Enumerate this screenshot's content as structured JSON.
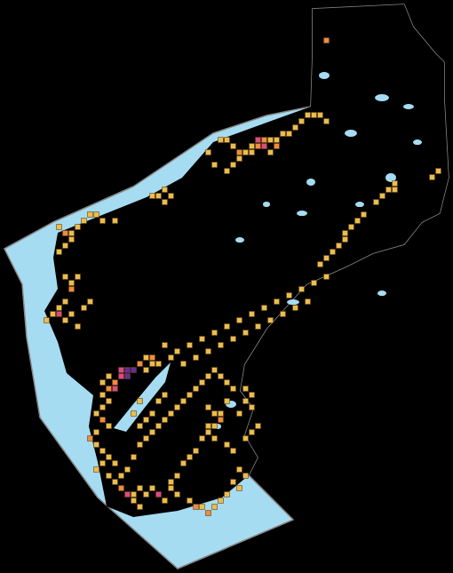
{
  "chart_data": {
    "type": "map",
    "tick_labels": false,
    "xlim": [
      0,
      72.86
    ],
    "ylim": [
      92.14,
      0
    ],
    "colors": [
      "#ebbd4c",
      "#f08c3c",
      "#de4a7e",
      "#6a2c9a"
    ],
    "cells": [
      [
        35,
        22,
        1
      ],
      [
        36,
        22,
        1
      ],
      [
        37,
        23,
        1
      ],
      [
        38,
        24,
        2
      ],
      [
        39,
        24,
        1
      ],
      [
        40,
        23,
        1
      ],
      [
        41,
        23,
        2
      ],
      [
        42,
        23,
        3
      ],
      [
        43,
        22,
        1
      ],
      [
        44,
        22,
        1
      ],
      [
        45,
        21,
        1
      ],
      [
        46,
        21,
        1
      ],
      [
        47,
        20,
        1
      ],
      [
        48,
        19,
        1
      ],
      [
        49,
        18,
        1
      ],
      [
        50,
        18,
        1
      ],
      [
        51,
        18,
        1
      ],
      [
        52,
        19,
        1
      ],
      [
        38,
        25,
        1
      ],
      [
        37,
        26,
        1
      ],
      [
        36,
        27,
        1
      ],
      [
        34,
        26,
        1
      ],
      [
        33,
        24,
        1
      ],
      [
        41,
        22,
        3
      ],
      [
        42,
        22,
        2
      ],
      [
        40,
        24,
        1
      ],
      [
        43,
        24,
        1
      ],
      [
        44,
        23,
        2
      ],
      [
        24,
        31,
        1
      ],
      [
        25,
        31,
        1
      ],
      [
        26,
        30,
        1
      ],
      [
        27,
        31,
        1
      ],
      [
        26,
        32,
        1
      ],
      [
        52,
        6,
        2
      ],
      [
        9,
        36,
        1
      ],
      [
        10,
        37,
        2
      ],
      [
        11,
        37,
        1
      ],
      [
        12,
        36,
        1
      ],
      [
        13,
        35,
        1
      ],
      [
        14,
        34,
        1
      ],
      [
        15,
        34,
        1
      ],
      [
        16,
        35,
        1
      ],
      [
        18,
        35,
        1
      ],
      [
        11,
        38,
        1
      ],
      [
        10,
        39,
        1
      ],
      [
        9,
        40,
        1
      ],
      [
        10,
        44,
        1
      ],
      [
        11,
        45,
        1
      ],
      [
        12,
        44,
        1
      ],
      [
        11,
        46,
        2
      ],
      [
        10,
        48,
        1
      ],
      [
        9,
        49,
        1
      ],
      [
        8,
        50,
        1
      ],
      [
        9,
        50,
        3
      ],
      [
        10,
        51,
        1
      ],
      [
        11,
        50,
        1
      ],
      [
        12,
        52,
        1
      ],
      [
        13,
        49,
        1
      ],
      [
        14,
        48,
        1
      ],
      [
        7,
        51,
        1
      ],
      [
        58,
        34,
        1
      ],
      [
        57,
        35,
        1
      ],
      [
        56,
        36,
        1
      ],
      [
        55,
        37,
        1
      ],
      [
        55,
        38,
        1
      ],
      [
        54,
        39,
        1
      ],
      [
        53,
        40,
        1
      ],
      [
        52,
        41,
        1
      ],
      [
        51,
        42,
        1
      ],
      [
        62,
        30,
        1
      ],
      [
        63,
        30,
        1
      ],
      [
        61,
        31,
        1
      ],
      [
        60,
        32,
        1
      ],
      [
        70,
        27,
        1
      ],
      [
        69,
        28,
        1
      ],
      [
        63,
        29,
        1
      ],
      [
        19,
        59,
        3
      ],
      [
        20,
        59,
        4
      ],
      [
        21,
        59,
        4
      ],
      [
        20,
        60,
        4
      ],
      [
        19,
        60,
        3
      ],
      [
        18,
        61,
        2
      ],
      [
        17,
        62,
        2
      ],
      [
        18,
        62,
        3
      ],
      [
        22,
        58,
        2
      ],
      [
        23,
        57,
        1
      ],
      [
        24,
        57,
        2
      ],
      [
        25,
        58,
        1
      ],
      [
        17,
        60,
        1
      ],
      [
        16,
        61,
        1
      ],
      [
        16,
        63,
        1
      ],
      [
        17,
        64,
        1
      ],
      [
        16,
        65,
        1
      ],
      [
        15,
        66,
        1
      ],
      [
        16,
        67,
        2
      ],
      [
        17,
        68,
        1
      ],
      [
        15,
        69,
        1
      ],
      [
        14,
        70,
        2
      ],
      [
        15,
        71,
        1
      ],
      [
        16,
        72,
        1
      ],
      [
        17,
        73,
        1
      ],
      [
        16,
        74,
        1
      ],
      [
        15,
        75,
        1
      ],
      [
        17,
        76,
        1
      ],
      [
        18,
        77,
        1
      ],
      [
        19,
        78,
        2
      ],
      [
        20,
        79,
        3
      ],
      [
        21,
        79,
        1
      ],
      [
        22,
        78,
        1
      ],
      [
        21,
        80,
        1
      ],
      [
        23,
        79,
        1
      ],
      [
        24,
        78,
        1
      ],
      [
        25,
        79,
        3
      ],
      [
        26,
        80,
        1
      ],
      [
        22,
        81,
        1
      ],
      [
        27,
        78,
        1
      ],
      [
        28,
        79,
        1
      ],
      [
        30,
        80,
        1
      ],
      [
        31,
        81,
        2
      ],
      [
        32,
        81,
        1
      ],
      [
        33,
        82,
        2
      ],
      [
        34,
        81,
        1
      ],
      [
        19,
        76,
        1
      ],
      [
        20,
        75,
        1
      ],
      [
        18,
        74,
        1
      ],
      [
        21,
        73,
        1
      ],
      [
        22,
        71,
        1
      ],
      [
        23,
        70,
        1
      ],
      [
        24,
        69,
        1
      ],
      [
        25,
        68,
        1
      ],
      [
        26,
        67,
        1
      ],
      [
        27,
        66,
        1
      ],
      [
        28,
        65,
        1
      ],
      [
        29,
        64,
        1
      ],
      [
        30,
        63,
        1
      ],
      [
        31,
        62,
        1
      ],
      [
        32,
        61,
        1
      ],
      [
        33,
        60,
        1
      ],
      [
        34,
        59,
        1
      ],
      [
        35,
        60,
        1
      ],
      [
        36,
        61,
        1
      ],
      [
        37,
        62,
        1
      ],
      [
        36,
        64,
        1
      ],
      [
        35,
        66,
        1
      ],
      [
        34,
        68,
        1
      ],
      [
        33,
        69,
        1
      ],
      [
        32,
        70,
        1
      ],
      [
        31,
        72,
        1
      ],
      [
        30,
        73,
        1
      ],
      [
        29,
        74,
        1
      ],
      [
        28,
        76,
        1
      ],
      [
        27,
        77,
        1
      ],
      [
        38,
        75,
        1
      ],
      [
        39,
        76,
        1
      ],
      [
        37,
        77,
        1
      ],
      [
        38,
        78,
        1
      ],
      [
        36,
        79,
        1
      ],
      [
        35,
        80,
        1
      ],
      [
        26,
        55,
        1
      ],
      [
        28,
        56,
        1
      ],
      [
        30,
        55,
        1
      ],
      [
        32,
        54,
        1
      ],
      [
        34,
        53,
        1
      ],
      [
        36,
        52,
        1
      ],
      [
        38,
        51,
        1
      ],
      [
        40,
        50,
        1
      ],
      [
        42,
        49,
        1
      ],
      [
        44,
        48,
        1
      ],
      [
        46,
        47,
        1
      ],
      [
        48,
        46,
        1
      ],
      [
        50,
        45,
        1
      ],
      [
        52,
        44,
        1
      ],
      [
        27,
        57,
        1
      ],
      [
        29,
        58,
        1
      ],
      [
        31,
        57,
        1
      ],
      [
        33,
        56,
        1
      ],
      [
        35,
        55,
        1
      ],
      [
        37,
        54,
        1
      ],
      [
        39,
        53,
        1
      ],
      [
        41,
        52,
        1
      ],
      [
        43,
        51,
        1
      ],
      [
        45,
        50,
        1
      ],
      [
        47,
        49,
        1
      ],
      [
        49,
        48,
        1
      ],
      [
        24,
        58,
        1
      ],
      [
        23,
        59,
        1
      ],
      [
        33,
        65,
        1
      ],
      [
        34,
        66,
        1
      ],
      [
        35,
        67,
        2
      ],
      [
        33,
        68,
        1
      ],
      [
        34,
        70,
        1
      ],
      [
        36,
        71,
        1
      ],
      [
        37,
        72,
        1
      ],
      [
        39,
        70,
        1
      ],
      [
        40,
        69,
        1
      ],
      [
        41,
        68,
        1
      ],
      [
        40,
        65,
        1
      ],
      [
        39,
        64,
        1
      ],
      [
        38,
        66,
        1
      ],
      [
        39,
        62,
        1
      ],
      [
        40,
        63,
        1
      ],
      [
        25,
        64,
        1
      ],
      [
        26,
        63,
        1
      ],
      [
        24,
        66,
        1
      ],
      [
        23,
        67,
        1
      ],
      [
        22,
        68,
        1
      ],
      [
        22,
        64,
        1
      ],
      [
        21,
        66,
        1
      ]
    ]
  }
}
